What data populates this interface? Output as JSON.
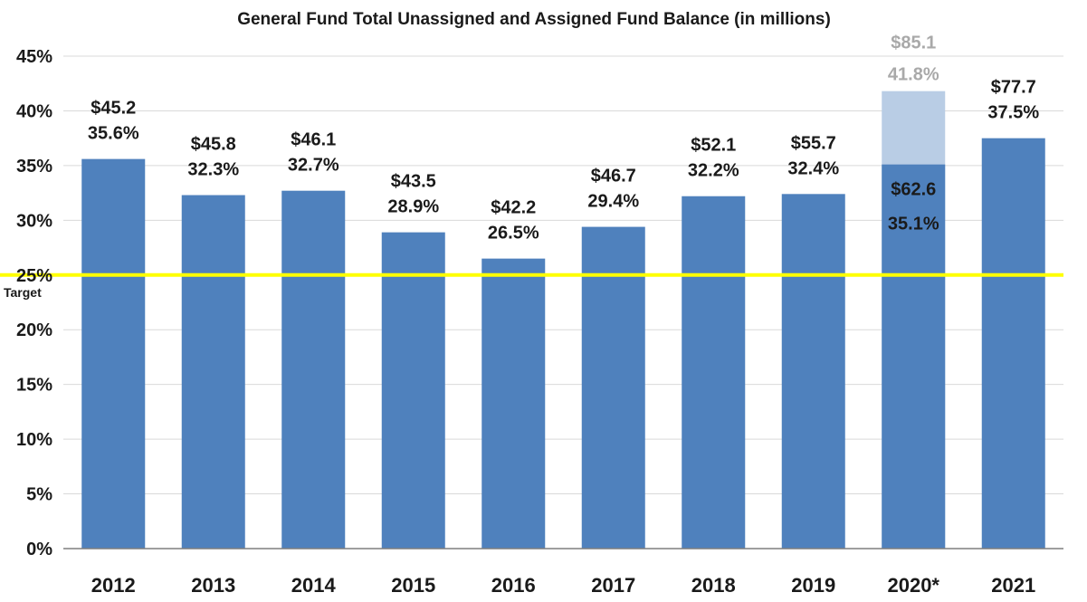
{
  "chart_data": {
    "type": "bar",
    "title": "General Fund Total Unassigned and Assigned Fund Balance (in millions)",
    "xlabel": "",
    "ylabel": "",
    "categories": [
      "2012",
      "2013",
      "2014",
      "2015",
      "2016",
      "2017",
      "2018",
      "2019",
      "2020*",
      "2021"
    ],
    "ylim": [
      0,
      45
    ],
    "yticks": [
      0,
      5,
      10,
      15,
      20,
      25,
      30,
      35,
      40,
      45
    ],
    "ytick_labels": [
      "0%",
      "5%",
      "10%",
      "15%",
      "20%",
      "25%",
      "30%",
      "35%",
      "40%",
      "45%"
    ],
    "grid": true,
    "series": [
      {
        "values": [
          35.6,
          32.3,
          32.7,
          28.9,
          26.5,
          29.4,
          32.2,
          32.4,
          35.1,
          37.5
        ],
        "color": "#4f81bd",
        "labels_amount": [
          "$45.2",
          "$45.8",
          "$46.1",
          "$43.5",
          "$42.2",
          "$46.7",
          "$52.1",
          "$55.7",
          "$62.6",
          "$77.7"
        ],
        "labels_percent": [
          "35.6%",
          "32.3%",
          "32.7%",
          "28.9%",
          "26.5%",
          "29.4%",
          "32.2%",
          "32.4%",
          "35.1%",
          "37.5%"
        ]
      },
      {
        "values": [
          null,
          null,
          null,
          null,
          null,
          null,
          null,
          null,
          41.8,
          null
        ],
        "color": "#b9cde5",
        "labels_amount": [
          "",
          "",
          "",
          "",
          "",
          "",
          "",
          "",
          "$85.1",
          ""
        ],
        "labels_percent": [
          "",
          "",
          "",
          "",
          "",
          "",
          "",
          "",
          "41.8%",
          ""
        ]
      }
    ],
    "reference_line": {
      "value": 25,
      "label": "Target",
      "color": "#ffff00"
    },
    "colors": {
      "grid": "#d9d9d9",
      "axis": "#7f7f7f",
      "text": "#1a1a1a",
      "light_text": "#a9a9a9"
    }
  }
}
